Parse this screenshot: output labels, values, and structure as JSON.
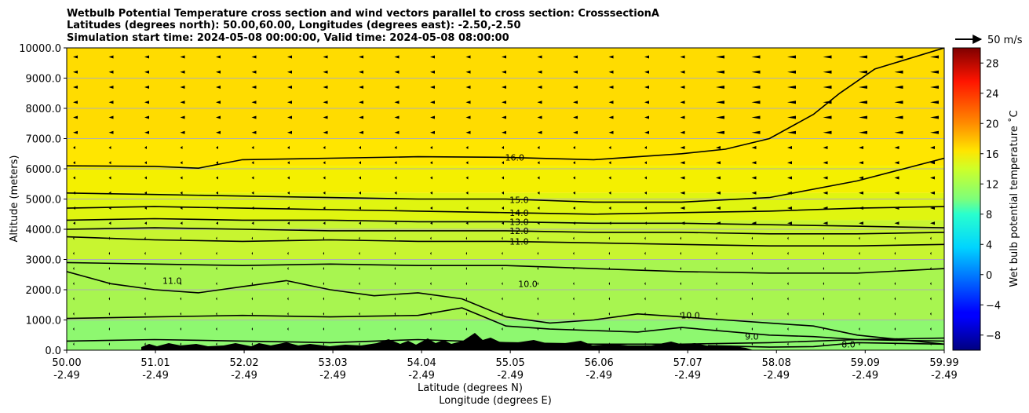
{
  "chart_data": {
    "type": "heatmap",
    "title_lines": [
      "Wetbulb Potential Temperature cross section and wind vectors parallel to cross section: CrosssectionA",
      "Latitudes (degrees north): 50.00,60.00, Longitudes (degrees east): -2.50,-2.50",
      "Simulation start time: 2024-05-08 00:00:00, Valid time: 2024-05-08 08:00:00"
    ],
    "xlabel_lat": "Latitude (degrees N)",
    "xlabel_lon": "Longitude (degrees E)",
    "ylabel": "Altitude (meters)",
    "colorbar_label": "Wet bulb potential temperature $^\\circ$C",
    "colorbar_label_text": "Wet bulb potential temperature ˚C",
    "colorbar_range": [
      -10,
      30
    ],
    "colorbar_ticks": [
      "−8",
      "−4",
      "0",
      "4",
      "8",
      "12",
      "16",
      "20",
      "24",
      "28"
    ],
    "colorbar_tick_values": [
      -8,
      -4,
      0,
      4,
      8,
      12,
      16,
      20,
      24,
      28
    ],
    "x_range": [
      50.0,
      59.99
    ],
    "ylim": [
      0,
      10000
    ],
    "x_ticks": [
      {
        "lat": "50.00",
        "lon": "-2.49",
        "v": 50.0
      },
      {
        "lat": "51.01",
        "lon": "-2.49",
        "v": 51.01
      },
      {
        "lat": "52.02",
        "lon": "-2.49",
        "v": 52.02
      },
      {
        "lat": "53.03",
        "lon": "-2.49",
        "v": 53.03
      },
      {
        "lat": "54.04",
        "lon": "-2.49",
        "v": 54.04
      },
      {
        "lat": "55.05",
        "lon": "-2.49",
        "v": 55.05
      },
      {
        "lat": "56.06",
        "lon": "-2.49",
        "v": 56.06
      },
      {
        "lat": "57.07",
        "lon": "-2.49",
        "v": 57.07
      },
      {
        "lat": "58.08",
        "lon": "-2.49",
        "v": 58.08
      },
      {
        "lat": "59.09",
        "lon": "-2.49",
        "v": 59.09
      },
      {
        "lat": "59.99",
        "lon": "-2.49",
        "v": 59.99
      }
    ],
    "y_ticks": [
      {
        "label": "0.0",
        "v": 0
      },
      {
        "label": "1000.0",
        "v": 1000
      },
      {
        "label": "2000.0",
        "v": 2000
      },
      {
        "label": "3000.0",
        "v": 3000
      },
      {
        "label": "4000.0",
        "v": 4000
      },
      {
        "label": "5000.0",
        "v": 5000
      },
      {
        "label": "6000.0",
        "v": 6000
      },
      {
        "label": "7000.0",
        "v": 7000
      },
      {
        "label": "8000.0",
        "v": 8000
      },
      {
        "label": "9000.0",
        "v": 9000
      },
      {
        "label": "10000.0",
        "v": 10000
      }
    ],
    "quiver_key": "50 m/s",
    "color_bands": [
      {
        "top": 10000,
        "bottom": 7000,
        "color": "#ffdc00"
      },
      {
        "top": 7000,
        "bottom": 6100,
        "color": "#ffe600"
      },
      {
        "top": 6100,
        "bottom": 5200,
        "color": "#f4f000"
      },
      {
        "top": 5200,
        "bottom": 4300,
        "color": "#e0f510"
      },
      {
        "top": 4300,
        "bottom": 3000,
        "color": "#c8f530"
      },
      {
        "top": 3000,
        "bottom": 1000,
        "color": "#a8f550"
      },
      {
        "top": 1000,
        "bottom": 0,
        "color": "#8ef870"
      }
    ],
    "contours": [
      {
        "level": "16.0",
        "points": [
          [
            50.0,
            6100
          ],
          [
            51.0,
            6080
          ],
          [
            51.5,
            6020
          ],
          [
            52.0,
            6300
          ],
          [
            53.0,
            6350
          ],
          [
            54.0,
            6400
          ],
          [
            55.0,
            6380
          ],
          [
            56.0,
            6300
          ],
          [
            57.0,
            6500
          ],
          [
            57.5,
            6650
          ],
          [
            58.0,
            7000
          ],
          [
            58.5,
            7800
          ],
          [
            58.8,
            8500
          ],
          [
            59.2,
            9300
          ],
          [
            59.99,
            10000
          ]
        ],
        "label_at": [
          55.1,
          6380
        ]
      },
      {
        "level": "15.0",
        "points": [
          [
            50.0,
            5200
          ],
          [
            51.0,
            5150
          ],
          [
            52.0,
            5100
          ],
          [
            53.0,
            5050
          ],
          [
            54.0,
            5000
          ],
          [
            55.0,
            5000
          ],
          [
            56.0,
            4900
          ],
          [
            57.0,
            4900
          ],
          [
            58.0,
            5050
          ],
          [
            59.0,
            5600
          ],
          [
            59.99,
            6350
          ]
        ],
        "label_at": [
          55.15,
          4980
        ]
      },
      {
        "level": "14.0",
        "points": [
          [
            50.0,
            4700
          ],
          [
            51.0,
            4750
          ],
          [
            52.0,
            4700
          ],
          [
            53.0,
            4650
          ],
          [
            54.0,
            4600
          ],
          [
            55.0,
            4550
          ],
          [
            56.0,
            4500
          ],
          [
            57.0,
            4550
          ],
          [
            58.0,
            4600
          ],
          [
            59.0,
            4700
          ],
          [
            59.99,
            4750
          ]
        ],
        "label_at": [
          55.15,
          4550
        ]
      },
      {
        "level": "13.0",
        "points": [
          [
            50.0,
            4300
          ],
          [
            51.0,
            4350
          ],
          [
            52.0,
            4300
          ],
          [
            53.0,
            4300
          ],
          [
            54.0,
            4250
          ],
          [
            55.0,
            4250
          ],
          [
            56.0,
            4200
          ],
          [
            57.0,
            4200
          ],
          [
            58.0,
            4150
          ],
          [
            59.0,
            4100
          ],
          [
            59.99,
            4050
          ]
        ],
        "label_at": [
          55.15,
          4250
        ]
      },
      {
        "level": "12.0",
        "points": [
          [
            50.0,
            4000
          ],
          [
            51.0,
            4050
          ],
          [
            52.0,
            4000
          ],
          [
            53.0,
            3950
          ],
          [
            54.0,
            3950
          ],
          [
            55.0,
            3950
          ],
          [
            56.0,
            3900
          ],
          [
            57.0,
            3900
          ],
          [
            58.0,
            3850
          ],
          [
            59.0,
            3850
          ],
          [
            59.99,
            3900
          ]
        ],
        "label_at": [
          55.15,
          3950
        ]
      },
      {
        "level": "11.0",
        "points": [
          [
            50.0,
            3750
          ],
          [
            51.0,
            3650
          ],
          [
            52.0,
            3600
          ],
          [
            53.0,
            3650
          ],
          [
            54.0,
            3600
          ],
          [
            55.0,
            3600
          ],
          [
            56.0,
            3550
          ],
          [
            57.0,
            3500
          ],
          [
            58.0,
            3450
          ],
          [
            59.0,
            3450
          ],
          [
            59.99,
            3500
          ]
        ],
        "label_at": [
          55.15,
          3600
        ]
      },
      {
        "level": "10.0",
        "points": [
          [
            50.0,
            2900
          ],
          [
            51.0,
            2850
          ],
          [
            52.0,
            2800
          ],
          [
            53.0,
            2850
          ],
          [
            54.0,
            2800
          ],
          [
            55.0,
            2800
          ],
          [
            56.0,
            2700
          ],
          [
            57.0,
            2600
          ],
          [
            58.0,
            2550
          ],
          [
            59.0,
            2550
          ],
          [
            59.99,
            2700
          ]
        ],
        "label_at": [
          55.25,
          2200
        ]
      },
      {
        "level": "11.0",
        "points": [
          [
            50.0,
            2600
          ],
          [
            50.5,
            2200
          ],
          [
            51.0,
            2000
          ],
          [
            51.5,
            1900
          ],
          [
            52.0,
            2100
          ],
          [
            52.5,
            2300
          ],
          [
            53.0,
            2000
          ],
          [
            53.5,
            1800
          ],
          [
            54.0,
            1900
          ],
          [
            54.5,
            1700
          ],
          [
            55.0,
            1100
          ],
          [
            55.5,
            900
          ],
          [
            56.0,
            1000
          ],
          [
            56.5,
            1200
          ],
          [
            57.0,
            1100
          ],
          [
            57.5,
            1000
          ],
          [
            58.0,
            900
          ],
          [
            58.5,
            800
          ],
          [
            59.0,
            500
          ],
          [
            59.99,
            200
          ]
        ],
        "label_at": [
          51.2,
          2300
        ]
      },
      {
        "level": "10.0",
        "points": [
          [
            50.0,
            1050
          ],
          [
            51.0,
            1100
          ],
          [
            52.0,
            1150
          ],
          [
            53.0,
            1100
          ],
          [
            54.0,
            1150
          ],
          [
            54.5,
            1400
          ],
          [
            55.0,
            800
          ],
          [
            55.5,
            700
          ],
          [
            56.0,
            650
          ],
          [
            56.5,
            600
          ],
          [
            57.0,
            750
          ],
          [
            58.0,
            500
          ],
          [
            58.5,
            450
          ],
          [
            59.0,
            350
          ],
          [
            59.99,
            300
          ]
        ],
        "label_at": [
          57.1,
          1150
        ]
      },
      {
        "level": "9.0",
        "points": [
          [
            50.0,
            300
          ],
          [
            51.0,
            350
          ],
          [
            52.0,
            300
          ],
          [
            53.0,
            250
          ],
          [
            54.0,
            350
          ],
          [
            55.0,
            250
          ],
          [
            56.0,
            200
          ],
          [
            57.0,
            200
          ],
          [
            58.0,
            250
          ],
          [
            59.0,
            350
          ],
          [
            59.99,
            400
          ]
        ],
        "label_at": [
          57.8,
          450
        ]
      },
      {
        "level": "8.0",
        "points": [
          [
            57.3,
            150
          ],
          [
            58.0,
            100
          ],
          [
            58.5,
            120
          ],
          [
            59.0,
            250
          ],
          [
            59.99,
            200
          ]
        ],
        "label_at": [
          58.9,
          200
        ]
      }
    ]
  }
}
